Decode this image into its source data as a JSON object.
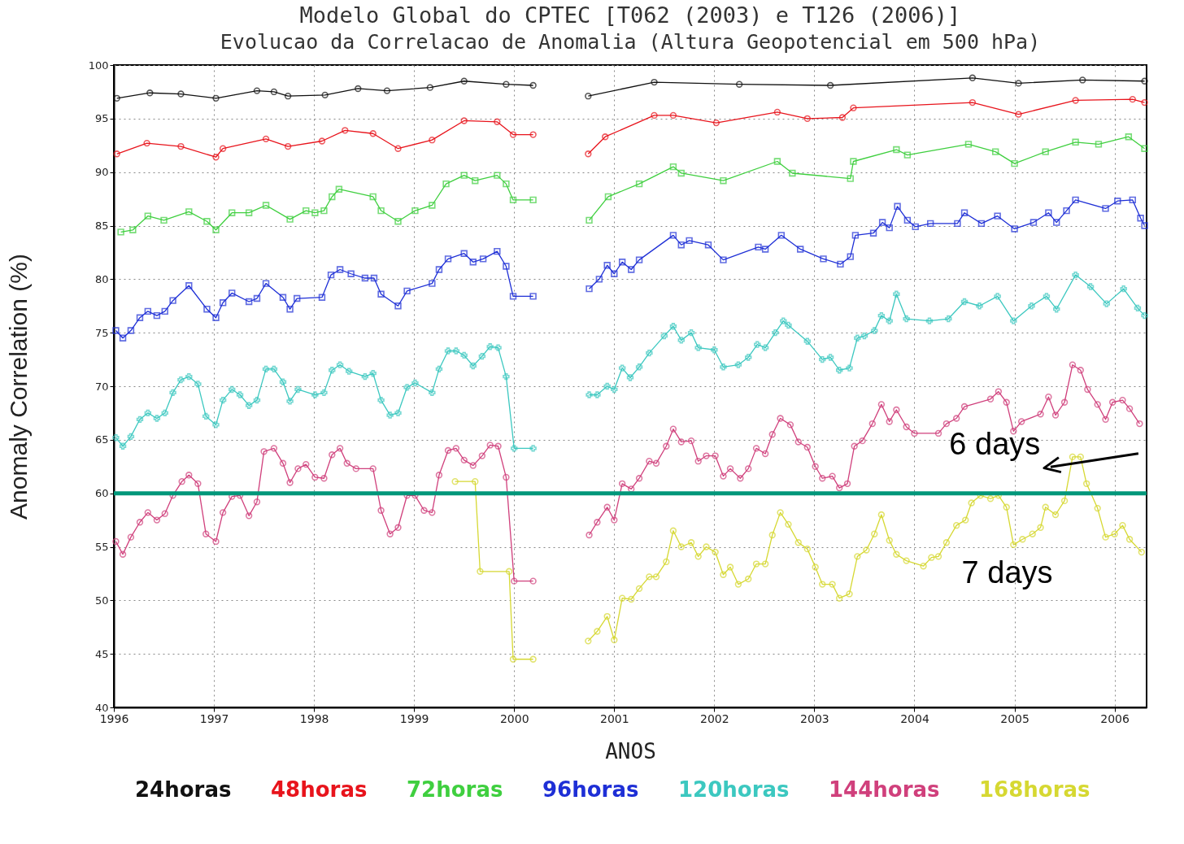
{
  "chart_data": {
    "type": "line",
    "title": "Modelo Global do CPTEC [T062 (2003) e T126 (2006)]",
    "subtitle": "Evolucao da Correlacao de Anomalia (Altura Geopotencial em 500 hPa)",
    "xlabel": "ANOS",
    "ylabel": "Anomaly Correlation (%)",
    "xlim": [
      1996,
      2006.32
    ],
    "xticks": [
      1996,
      1997,
      1998,
      1999,
      2000,
      2001,
      2002,
      2003,
      2004,
      2005,
      2006
    ],
    "ylim": [
      40,
      100
    ],
    "yticks": [
      40,
      45,
      50,
      55,
      60,
      65,
      70,
      75,
      80,
      85,
      90,
      95,
      100
    ],
    "grid": true,
    "legend": "bottom",
    "ref_lines": [
      {
        "axis": "y",
        "value": 60,
        "color": "#00977a"
      }
    ],
    "annotations": [
      "6 days",
      "7 days"
    ],
    "series": [
      {
        "name": "24horas",
        "color": "#111111",
        "marker": "circle",
        "x": [
          1996.03,
          1996.36,
          1996.67,
          1997.02,
          1997.43,
          1997.6,
          1997.74,
          1998.11,
          1998.44,
          1998.73,
          1999.16,
          1999.5,
          1999.92,
          2000.19,
          2000.45,
          2000.74,
          2001.4,
          2002.25,
          2003.16,
          2004.58,
          2005.04,
          2005.68,
          2006.3
        ],
        "values": [
          96.9,
          97.4,
          97.3,
          96.9,
          97.6,
          97.5,
          97.1,
          97.2,
          97.8,
          97.6,
          97.9,
          98.5,
          98.2,
          98.1,
          null,
          97.1,
          98.4,
          98.2,
          98.1,
          98.8,
          98.3,
          98.6,
          98.5
        ]
      },
      {
        "name": "48horas",
        "color": "#e8141c",
        "marker": "circle",
        "x": [
          1996.03,
          1996.33,
          1996.67,
          1997.02,
          1997.09,
          1997.52,
          1997.74,
          1998.08,
          1998.31,
          1998.59,
          1998.84,
          1999.18,
          1999.5,
          1999.83,
          1999.99,
          2000.19,
          2000.45,
          2000.74,
          2000.91,
          2001.4,
          2001.59,
          2002.02,
          2002.63,
          2002.93,
          2003.28,
          2003.39,
          2004.58,
          2005.04,
          2005.61,
          2006.18,
          2006.3
        ],
        "values": [
          91.7,
          92.7,
          92.4,
          91.4,
          92.2,
          93.1,
          92.4,
          92.9,
          93.9,
          93.6,
          92.2,
          93.0,
          94.8,
          94.7,
          93.5,
          93.5,
          null,
          91.7,
          93.3,
          95.3,
          95.3,
          94.6,
          95.6,
          95.0,
          95.1,
          96.0,
          96.5,
          95.4,
          96.7,
          96.8,
          96.5
        ]
      },
      {
        "name": "72horas",
        "color": "#3fcf3f",
        "marker": "square",
        "x": [
          1996.07,
          1996.19,
          1996.34,
          1996.5,
          1996.75,
          1996.93,
          1997.02,
          1997.18,
          1997.35,
          1997.52,
          1997.76,
          1997.92,
          1998.01,
          1998.1,
          1998.18,
          1998.25,
          1998.59,
          1998.67,
          1998.84,
          1999.01,
          1999.18,
          1999.32,
          1999.5,
          1999.61,
          1999.83,
          1999.92,
          1999.99,
          2000.19,
          2000.45,
          2000.75,
          2000.94,
          2001.25,
          2001.59,
          2001.67,
          2002.09,
          2002.63,
          2002.78,
          2003.36,
          2003.39,
          2003.82,
          2003.93,
          2004.54,
          2004.81,
          2005.0,
          2005.31,
          2005.61,
          2005.84,
          2006.14,
          2006.3
        ],
        "values": [
          84.4,
          84.6,
          85.9,
          85.5,
          86.3,
          85.4,
          84.6,
          86.2,
          86.2,
          86.9,
          85.6,
          86.4,
          86.2,
          86.4,
          87.7,
          88.4,
          87.7,
          86.4,
          85.4,
          86.4,
          86.9,
          88.9,
          89.7,
          89.2,
          89.7,
          88.9,
          87.4,
          87.4,
          null,
          85.5,
          87.7,
          88.9,
          90.5,
          89.9,
          89.2,
          91.0,
          89.9,
          89.4,
          91.0,
          92.1,
          91.6,
          92.6,
          91.9,
          90.8,
          91.9,
          92.8,
          92.6,
          93.3,
          92.2
        ]
      },
      {
        "name": "96horas",
        "color": "#1e2fd6",
        "marker": "square",
        "x": [
          1996.02,
          1996.09,
          1996.17,
          1996.26,
          1996.34,
          1996.43,
          1996.51,
          1996.59,
          1996.75,
          1996.93,
          1997.02,
          1997.09,
          1997.18,
          1997.35,
          1997.43,
          1997.52,
          1997.69,
          1997.76,
          1997.83,
          1998.08,
          1998.17,
          1998.26,
          1998.37,
          1998.51,
          1998.6,
          1998.67,
          1998.84,
          1998.93,
          1999.18,
          1999.25,
          1999.34,
          1999.5,
          1999.59,
          1999.69,
          1999.83,
          1999.92,
          1999.99,
          2000.19,
          2000.45,
          2000.75,
          2000.85,
          2000.93,
          2001.0,
          2001.08,
          2001.17,
          2001.25,
          2001.59,
          2001.67,
          2001.75,
          2001.94,
          2002.09,
          2002.44,
          2002.51,
          2002.67,
          2002.86,
          2003.09,
          2003.26,
          2003.36,
          2003.41,
          2003.59,
          2003.68,
          2003.75,
          2003.83,
          2003.93,
          2004.01,
          2004.16,
          2004.43,
          2004.5,
          2004.67,
          2004.83,
          2005.0,
          2005.19,
          2005.34,
          2005.42,
          2005.52,
          2005.61,
          2005.91,
          2006.03,
          2006.18,
          2006.26,
          2006.3
        ],
        "values": [
          75.2,
          74.5,
          75.2,
          76.4,
          77.0,
          76.6,
          77.0,
          78.0,
          79.4,
          77.2,
          76.4,
          77.8,
          78.7,
          77.9,
          78.2,
          79.6,
          78.3,
          77.2,
          78.2,
          78.3,
          80.4,
          80.9,
          80.5,
          80.1,
          80.1,
          78.6,
          77.5,
          78.9,
          79.6,
          80.9,
          81.9,
          82.4,
          81.6,
          81.9,
          82.6,
          81.2,
          78.4,
          78.4,
          null,
          79.1,
          80.0,
          81.3,
          80.5,
          81.6,
          80.9,
          81.8,
          84.1,
          83.2,
          83.6,
          83.2,
          81.8,
          83.0,
          82.8,
          84.1,
          82.8,
          81.9,
          81.4,
          82.1,
          84.1,
          84.3,
          85.3,
          84.8,
          86.8,
          85.5,
          84.9,
          85.2,
          85.2,
          86.2,
          85.2,
          85.9,
          84.7,
          85.3,
          86.2,
          85.3,
          86.4,
          87.4,
          86.6,
          87.3,
          87.4,
          85.7,
          85.0
        ]
      },
      {
        "name": "120horas",
        "color": "#3cc8c0",
        "marker": "cross",
        "x": [
          1996.02,
          1996.09,
          1996.17,
          1996.26,
          1996.34,
          1996.43,
          1996.51,
          1996.59,
          1996.67,
          1996.75,
          1996.84,
          1996.92,
          1997.02,
          1997.09,
          1997.18,
          1997.26,
          1997.35,
          1997.43,
          1997.52,
          1997.6,
          1997.69,
          1997.76,
          1997.84,
          1998.01,
          1998.1,
          1998.18,
          1998.26,
          1998.35,
          1998.51,
          1998.59,
          1998.67,
          1998.76,
          1998.84,
          1998.93,
          1999.01,
          1999.18,
          1999.25,
          1999.34,
          1999.42,
          1999.5,
          1999.59,
          1999.68,
          1999.76,
          1999.84,
          1999.92,
          2000.0,
          2000.19,
          2000.45,
          2000.75,
          2000.83,
          2000.93,
          2001.0,
          2001.08,
          2001.16,
          2001.25,
          2001.35,
          2001.5,
          2001.59,
          2001.67,
          2001.77,
          2001.84,
          2002.0,
          2002.09,
          2002.24,
          2002.34,
          2002.43,
          2002.51,
          2002.61,
          2002.69,
          2002.74,
          2002.93,
          2003.08,
          2003.16,
          2003.25,
          2003.35,
          2003.43,
          2003.5,
          2003.6,
          2003.67,
          2003.75,
          2003.82,
          2003.92,
          2004.15,
          2004.34,
          2004.5,
          2004.65,
          2004.83,
          2004.99,
          2005.17,
          2005.32,
          2005.42,
          2005.61,
          2005.76,
          2005.92,
          2006.09,
          2006.23,
          2006.3
        ],
        "values": [
          65.2,
          64.4,
          65.3,
          66.9,
          67.5,
          67.0,
          67.5,
          69.4,
          70.6,
          70.9,
          70.2,
          67.2,
          66.4,
          68.7,
          69.7,
          69.2,
          68.2,
          68.7,
          71.6,
          71.6,
          70.4,
          68.6,
          69.7,
          69.2,
          69.4,
          71.5,
          72.0,
          71.4,
          70.9,
          71.2,
          68.7,
          67.3,
          67.5,
          69.9,
          70.3,
          69.4,
          71.6,
          73.3,
          73.3,
          72.9,
          71.9,
          72.8,
          73.7,
          73.6,
          70.9,
          64.2,
          64.2,
          null,
          69.2,
          69.2,
          70.0,
          69.7,
          71.7,
          70.8,
          71.8,
          73.1,
          74.7,
          75.6,
          74.3,
          75.0,
          73.6,
          73.4,
          71.8,
          72.0,
          72.7,
          73.9,
          73.6,
          75.0,
          76.1,
          75.7,
          74.2,
          72.5,
          72.7,
          71.5,
          71.7,
          74.5,
          74.7,
          75.2,
          76.6,
          76.1,
          78.6,
          76.3,
          76.1,
          76.3,
          77.9,
          77.5,
          78.4,
          76.1,
          77.5,
          78.4,
          77.2,
          80.4,
          79.3,
          77.7,
          79.1,
          77.3,
          76.6
        ]
      },
      {
        "name": "144horas",
        "color": "#d0407c",
        "marker": "circle",
        "x": [
          1996.02,
          1996.09,
          1996.17,
          1996.26,
          1996.34,
          1996.43,
          1996.51,
          1996.59,
          1996.68,
          1996.75,
          1996.84,
          1996.92,
          1997.02,
          1997.09,
          1997.18,
          1997.26,
          1997.35,
          1997.43,
          1997.5,
          1997.6,
          1997.69,
          1997.76,
          1997.84,
          1997.92,
          1998.01,
          1998.1,
          1998.18,
          1998.26,
          1998.33,
          1998.42,
          1998.59,
          1998.67,
          1998.76,
          1998.84,
          1998.93,
          1999.01,
          1999.1,
          1999.18,
          1999.25,
          1999.34,
          1999.42,
          1999.5,
          1999.59,
          1999.68,
          1999.76,
          1999.84,
          1999.92,
          2000.0,
          2000.19,
          2000.45,
          2000.75,
          2000.83,
          2000.93,
          2001.0,
          2001.08,
          2001.17,
          2001.25,
          2001.35,
          2001.42,
          2001.52,
          2001.59,
          2001.67,
          2001.77,
          2001.84,
          2001.92,
          2002.01,
          2002.09,
          2002.16,
          2002.26,
          2002.34,
          2002.42,
          2002.51,
          2002.58,
          2002.66,
          2002.76,
          2002.84,
          2002.93,
          2003.01,
          2003.08,
          2003.18,
          2003.25,
          2003.33,
          2003.4,
          2003.48,
          2003.58,
          2003.67,
          2003.75,
          2003.82,
          2003.92,
          2004.0,
          2004.24,
          2004.32,
          2004.42,
          2004.5,
          2004.76,
          2004.84,
          2004.92,
          2004.99,
          2005.07,
          2005.26,
          2005.34,
          2005.41,
          2005.5,
          2005.58,
          2005.66,
          2005.73,
          2005.83,
          2005.91,
          2005.98,
          2006.08,
          2006.15,
          2006.25
        ],
        "values": [
          55.5,
          54.3,
          55.9,
          57.3,
          58.2,
          57.5,
          58.1,
          59.8,
          61.1,
          61.7,
          60.9,
          56.2,
          55.5,
          58.2,
          59.7,
          59.8,
          57.9,
          59.2,
          63.9,
          64.2,
          62.8,
          61.0,
          62.3,
          62.7,
          61.5,
          61.4,
          63.6,
          64.2,
          62.8,
          62.3,
          62.3,
          58.4,
          56.2,
          56.8,
          59.8,
          59.8,
          58.4,
          58.2,
          61.7,
          64.0,
          64.2,
          63.1,
          62.6,
          63.5,
          64.5,
          64.4,
          61.5,
          51.8,
          51.8,
          null,
          56.1,
          57.3,
          58.7,
          57.5,
          60.9,
          60.4,
          61.4,
          63.0,
          62.8,
          64.4,
          66.0,
          64.8,
          64.9,
          63.0,
          63.5,
          63.5,
          61.6,
          62.3,
          61.4,
          62.3,
          64.2,
          63.7,
          65.5,
          67.0,
          66.4,
          64.8,
          64.3,
          62.5,
          61.4,
          61.6,
          60.5,
          60.9,
          64.4,
          64.9,
          66.5,
          68.3,
          66.7,
          67.8,
          66.2,
          65.6,
          65.6,
          66.5,
          67.0,
          68.1,
          68.8,
          69.5,
          68.5,
          65.8,
          66.7,
          67.4,
          69.0,
          67.3,
          68.5,
          72.0,
          71.5,
          69.7,
          68.3,
          66.9,
          68.5,
          68.7,
          67.9,
          66.5
        ]
      },
      {
        "name": "168horas",
        "color": "#d6d832",
        "marker": "circle",
        "x": [
          1999.41,
          1999.61,
          1999.66,
          1999.95,
          1999.99,
          2000.19,
          2000.45,
          2000.74,
          2000.83,
          2000.93,
          2001.0,
          2001.08,
          2001.17,
          2001.25,
          2001.35,
          2001.42,
          2001.52,
          2001.59,
          2001.67,
          2001.77,
          2001.84,
          2001.92,
          2002.01,
          2002.09,
          2002.16,
          2002.24,
          2002.34,
          2002.42,
          2002.51,
          2002.58,
          2002.66,
          2002.74,
          2002.84,
          2002.93,
          2003.01,
          2003.08,
          2003.18,
          2003.25,
          2003.35,
          2003.43,
          2003.52,
          2003.6,
          2003.67,
          2003.75,
          2003.82,
          2003.92,
          2004.09,
          2004.17,
          2004.24,
          2004.32,
          2004.42,
          2004.51,
          2004.57,
          2004.66,
          2004.76,
          2004.84,
          2004.92,
          2004.99,
          2005.08,
          2005.18,
          2005.26,
          2005.31,
          2005.41,
          2005.5,
          2005.58,
          2005.66,
          2005.72,
          2005.83,
          2005.91,
          2006.0,
          2006.08,
          2006.15,
          2006.27
        ],
        "values": [
          61.1,
          61.1,
          52.7,
          52.7,
          44.5,
          44.5,
          null,
          46.2,
          47.1,
          48.5,
          46.3,
          50.2,
          50.1,
          51.1,
          52.2,
          52.2,
          53.6,
          56.5,
          55.0,
          55.4,
          54.1,
          55.0,
          54.5,
          52.4,
          53.1,
          51.5,
          52.0,
          53.4,
          53.4,
          56.1,
          58.2,
          57.1,
          55.4,
          54.8,
          53.1,
          51.5,
          51.5,
          50.2,
          50.6,
          54.1,
          54.7,
          56.2,
          58.0,
          55.6,
          54.3,
          53.7,
          53.2,
          54.0,
          54.1,
          55.4,
          57.0,
          57.5,
          59.1,
          59.8,
          59.5,
          59.8,
          58.7,
          55.2,
          55.7,
          56.2,
          56.8,
          58.7,
          58.0,
          59.3,
          63.4,
          63.4,
          60.9,
          58.6,
          55.9,
          56.2,
          57.0,
          55.7,
          54.5
        ]
      }
    ]
  }
}
